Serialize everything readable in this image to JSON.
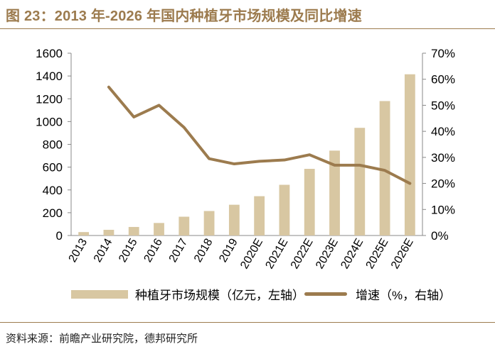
{
  "title": "图 23：2013 年-2026 年国内种植牙市场规模及同比增速",
  "source": "资料来源：前瞻产业研究院，德邦研究所",
  "colors": {
    "bar": "#d8c7a2",
    "line": "#9c7b4e",
    "title": "#9c7b4e"
  },
  "chart_data": {
    "type": "bar+line",
    "title": "2013 年-2026 年国内种植牙市场规模及同比增速",
    "categories": [
      "2013",
      "2014",
      "2015",
      "2016",
      "2017",
      "2018",
      "2019",
      "2020E",
      "2021E",
      "2022E",
      "2023E",
      "2024E",
      "2025E",
      "2026E"
    ],
    "series": [
      {
        "name": "种植牙市场规模（亿元，左轴）",
        "type": "bar",
        "axis": "left",
        "values": [
          30,
          50,
          75,
          110,
          165,
          215,
          270,
          345,
          445,
          585,
          745,
          945,
          1180,
          1415
        ]
      },
      {
        "name": "增速（%，右轴）",
        "type": "line",
        "axis": "right",
        "values": [
          null,
          57,
          45.5,
          50,
          41.5,
          29.5,
          27.5,
          28.5,
          29,
          31,
          27,
          27,
          25,
          20
        ]
      }
    ],
    "left_axis": {
      "min": 0,
      "max": 1600,
      "ticks": [
        "0",
        "200",
        "400",
        "600",
        "800",
        "1000",
        "1200",
        "1400",
        "1600"
      ]
    },
    "right_axis": {
      "min": 0,
      "max": 70,
      "ticks": [
        "0%",
        "10%",
        "20%",
        "30%",
        "40%",
        "50%",
        "60%",
        "70%"
      ]
    },
    "legend": {
      "bar_label": "种植牙市场规模（亿元，左轴）",
      "line_label": "增速（%，右轴）",
      "position": "bottom"
    }
  }
}
